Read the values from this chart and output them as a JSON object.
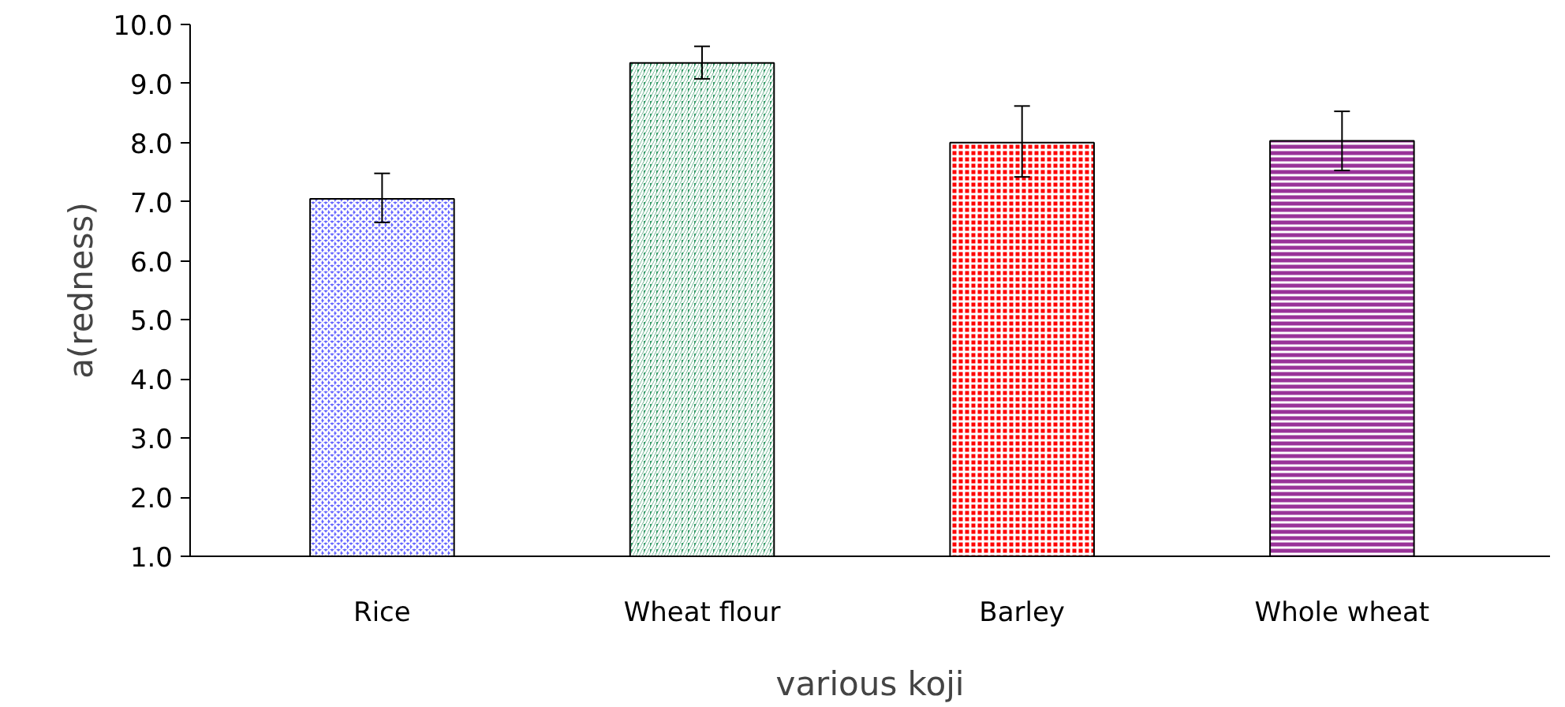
{
  "chart_data": {
    "type": "bar",
    "xlabel": "various koji",
    "ylabel": "a(redness)",
    "categories": [
      "Rice",
      "Wheat flour",
      "Barley",
      "Whole wheat"
    ],
    "values": [
      7.05,
      9.35,
      8.0,
      8.03
    ],
    "errors": [
      [
        6.65,
        7.48
      ],
      [
        9.08,
        9.63
      ],
      [
        7.42,
        8.62
      ],
      [
        7.53,
        8.53
      ]
    ],
    "colors": [
      "#6666ff",
      "#339966",
      "#ff0000",
      "#993399"
    ],
    "ylim": [
      1.0,
      10.0
    ],
    "yticks": [
      {
        "value": 1,
        "label": "1.0"
      },
      {
        "value": 2,
        "label": "2.0"
      },
      {
        "value": 3,
        "label": "3.0"
      },
      {
        "value": 4,
        "label": "4.0"
      },
      {
        "value": 5,
        "label": "5.0"
      },
      {
        "value": 6,
        "label": "6.0"
      },
      {
        "value": 7,
        "label": "7.0"
      },
      {
        "value": 8,
        "label": "8.0"
      },
      {
        "value": 9,
        "label": "9.0"
      },
      {
        "value": 10,
        "label": "10.0"
      }
    ],
    "grid": false
  }
}
